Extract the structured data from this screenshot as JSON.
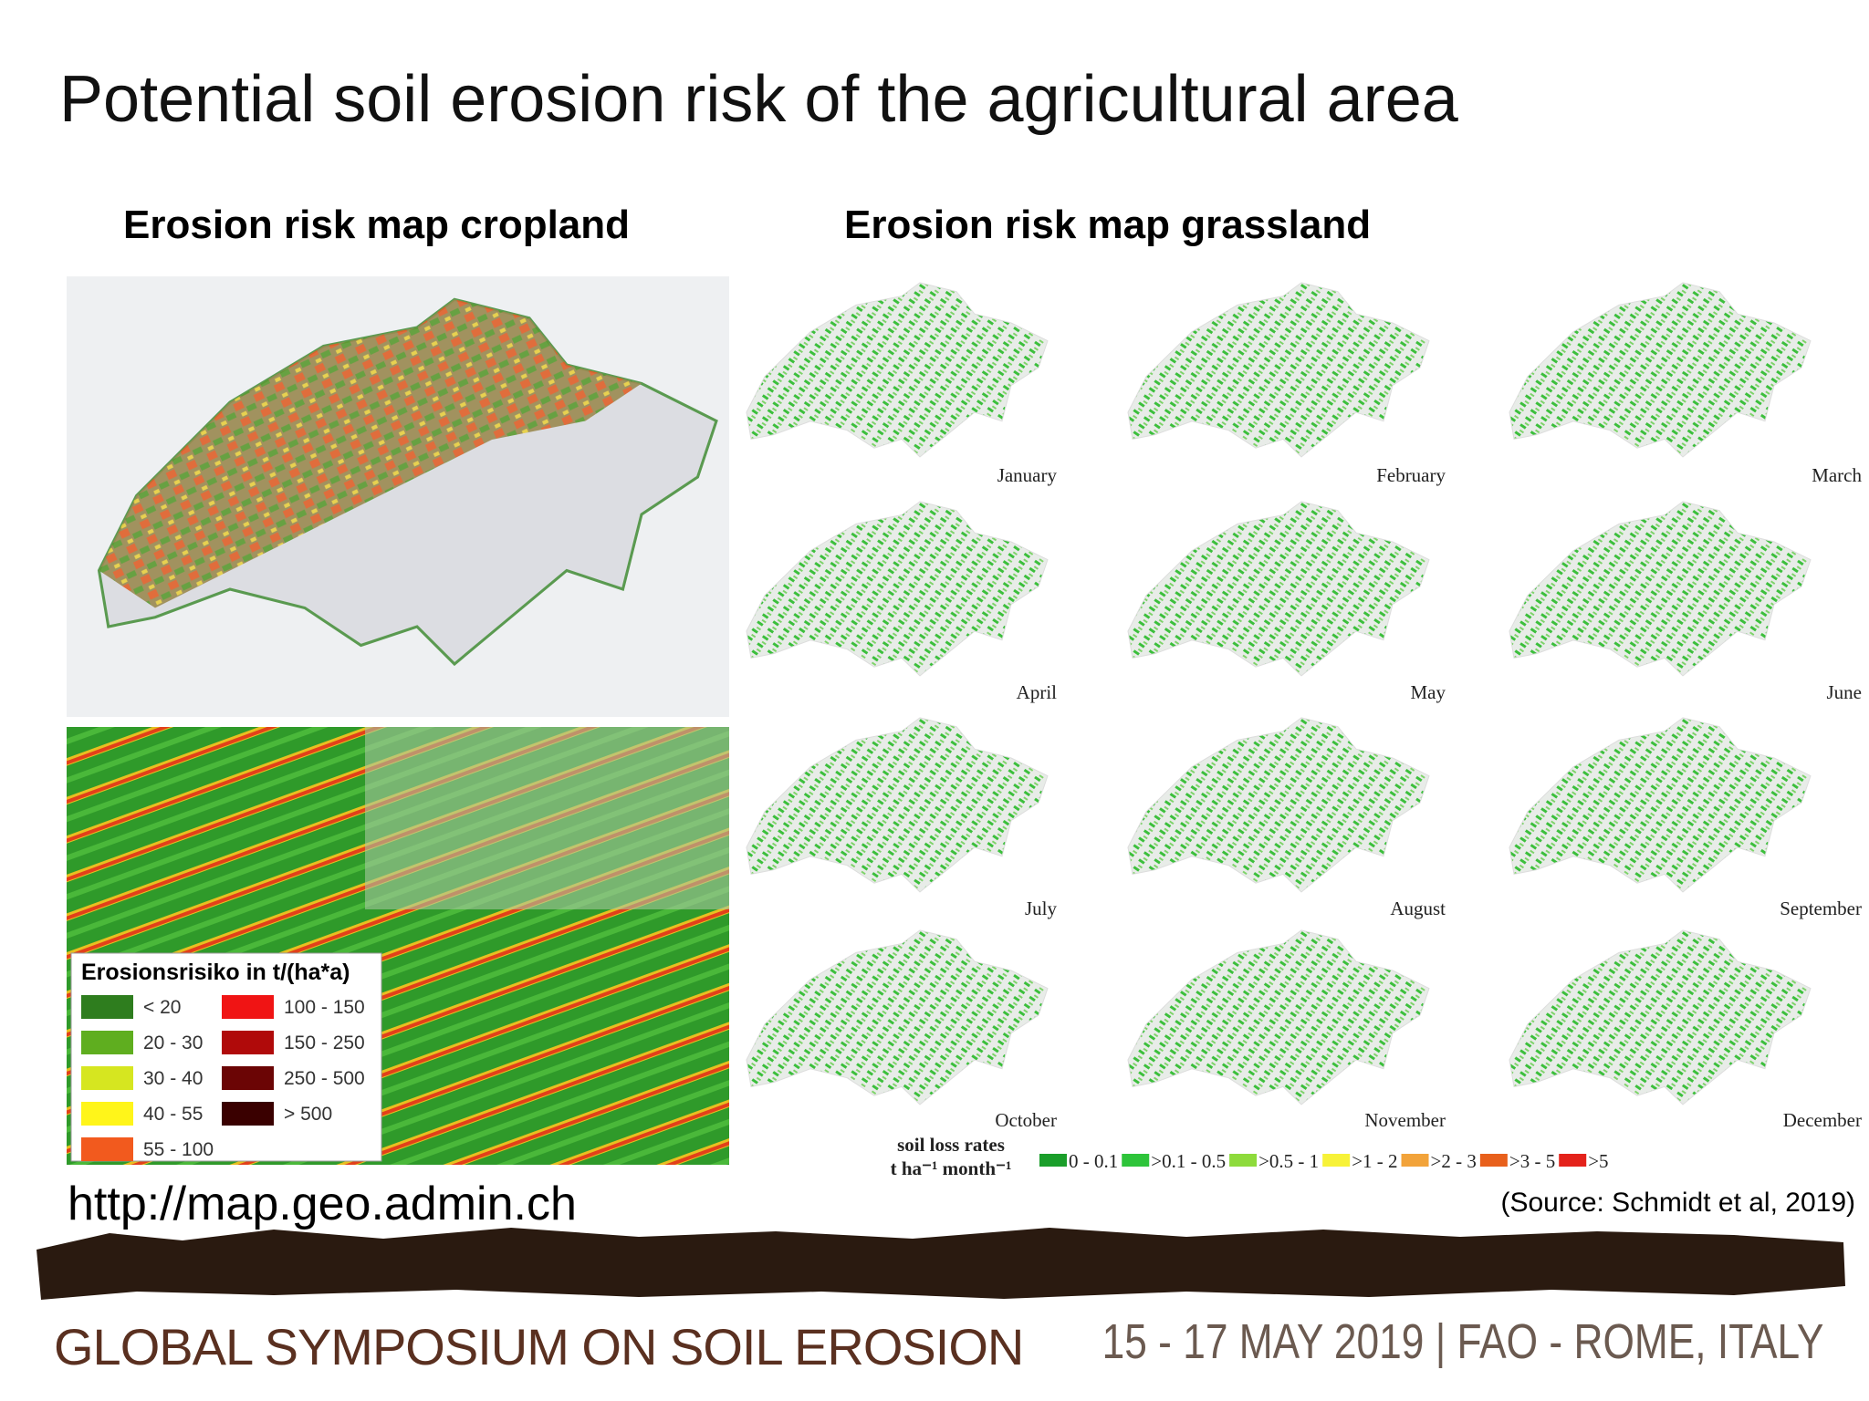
{
  "title": "Potential soil erosion risk of the agricultural area",
  "cropland": {
    "heading": "Erosion risk map cropland",
    "legend": {
      "title": "Erosionsrisiko in t/(ha*a)",
      "items": [
        {
          "label": "< 20",
          "color": "#2e7d1e"
        },
        {
          "label": "20 - 30",
          "color": "#5fae1f"
        },
        {
          "label": "30 - 40",
          "color": "#d6e620"
        },
        {
          "label": "40 - 55",
          "color": "#fff51a"
        },
        {
          "label": "55 - 100",
          "color": "#f25a1e"
        },
        {
          "label": "100 - 150",
          "color": "#f01414"
        },
        {
          "label": "150 - 250",
          "color": "#b00a0a"
        },
        {
          "label": "250 - 500",
          "color": "#6b0505"
        },
        {
          "label": "> 500",
          "color": "#3a0000"
        }
      ]
    },
    "url": "http://map.geo.admin.ch"
  },
  "grassland": {
    "heading": "Erosion risk map grassland",
    "months": [
      "January",
      "February",
      "March",
      "April",
      "May",
      "June",
      "July",
      "August",
      "September",
      "October",
      "November",
      "December"
    ],
    "legend": {
      "title": [
        "soil loss rates",
        "t ha⁻¹ month⁻¹"
      ],
      "items": [
        {
          "label": "0 - 0.1",
          "color": "#1a9e2a"
        },
        {
          "label": ">0.1 - 0.5",
          "color": "#2ec43a"
        },
        {
          "label": ">0.5 - 1",
          "color": "#8edb3c"
        },
        {
          "label": ">1 - 2",
          "color": "#f7f238"
        },
        {
          "label": ">2 - 3",
          "color": "#f2a33a"
        },
        {
          "label": ">3 - 5",
          "color": "#e8601c"
        },
        {
          "label": ">5",
          "color": "#e4221b"
        }
      ]
    }
  },
  "source": "(Source: Schmidt et al, 2019)",
  "footer": {
    "left": "GLOBAL SYMPOSIUM ON SOIL EROSION",
    "right": "15 - 17 MAY 2019 | FAO - ROME, ITALY"
  }
}
